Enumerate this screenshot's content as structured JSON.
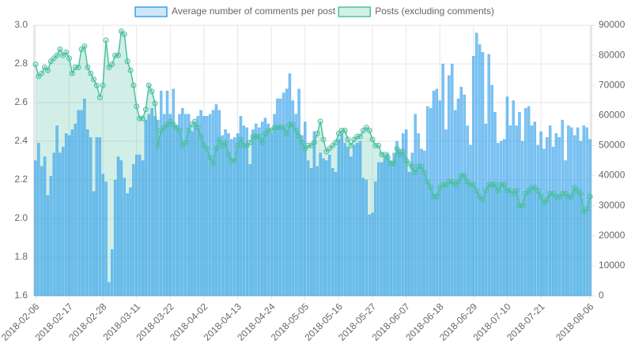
{
  "chart_data": {
    "type": "bar",
    "categories": [
      "2018-02-06",
      null,
      null,
      null,
      null,
      null,
      null,
      null,
      null,
      null,
      null,
      "2018-02-17",
      null,
      null,
      null,
      null,
      null,
      null,
      null,
      null,
      null,
      null,
      "2018-02-28",
      null,
      null,
      null,
      null,
      null,
      null,
      null,
      null,
      null,
      null,
      "2018-03-11",
      null,
      null,
      null,
      null,
      null,
      null,
      null,
      null,
      null,
      null,
      "2018-03-22",
      null,
      null,
      null,
      null,
      null,
      null,
      null,
      null,
      null,
      null,
      "2018-04-02",
      null,
      null,
      null,
      null,
      null,
      null,
      null,
      null,
      null,
      null,
      "2018-04-13",
      null,
      null,
      null,
      null,
      null,
      null,
      null,
      null,
      null,
      null,
      "2018-04-24",
      null,
      null,
      null,
      null,
      null,
      null,
      null,
      null,
      null,
      null,
      "2018-05-05",
      null,
      null,
      null,
      null,
      null,
      null,
      null,
      null,
      null,
      null,
      "2018-05-16",
      null,
      null,
      null,
      null,
      null,
      null,
      null,
      null,
      null,
      null,
      "2018-05-27",
      null,
      null,
      null,
      null,
      null,
      null,
      null,
      null,
      null,
      null,
      "2018-06-07",
      null,
      null,
      null,
      null,
      null,
      null,
      null,
      null,
      null,
      null,
      "2018-06-18",
      null,
      null,
      null,
      null,
      null,
      null,
      null,
      null,
      null,
      null,
      "2018-06-29",
      null,
      null,
      null,
      null,
      null,
      null,
      null,
      null,
      null,
      null,
      "2018-07-10",
      null,
      null,
      null,
      null,
      null,
      null,
      null,
      null,
      null,
      null,
      "2018-07-21",
      null,
      null,
      null,
      null,
      null,
      null,
      null,
      null,
      null,
      null,
      null,
      null,
      null,
      null,
      null,
      "2018-08-06"
    ],
    "series": [
      {
        "name": "Average number of comments per post",
        "color": "#36a2eb",
        "axis": "y",
        "values": [
          2.3,
          2.39,
          2.27,
          2.32,
          2.12,
          2.22,
          2.34,
          2.48,
          2.34,
          2.37,
          2.44,
          2.43,
          2.46,
          2.49,
          2.56,
          2.56,
          2.62,
          2.46,
          2.42,
          2.14,
          2.42,
          2.42,
          2.23,
          2.19,
          1.67,
          1.84,
          2.2,
          2.32,
          2.3,
          2.21,
          2.13,
          2.16,
          2.28,
          2.33,
          2.33,
          2.3,
          2.51,
          2.54,
          2.57,
          2.53,
          2.51,
          2.66,
          2.54,
          2.66,
          2.54,
          2.67,
          2.48,
          2.54,
          2.57,
          2.54,
          2.54,
          2.45,
          2.49,
          2.53,
          2.56,
          2.53,
          2.53,
          2.54,
          2.56,
          2.59,
          2.56,
          2.43,
          2.46,
          2.44,
          2.41,
          2.42,
          2.44,
          2.53,
          2.48,
          2.47,
          2.28,
          2.46,
          2.49,
          2.47,
          2.5,
          2.52,
          2.49,
          2.44,
          2.54,
          2.62,
          2.62,
          2.65,
          2.67,
          2.75,
          2.61,
          2.54,
          2.67,
          2.43,
          2.5,
          2.3,
          2.26,
          2.45,
          2.27,
          2.34,
          2.31,
          2.3,
          2.33,
          2.26,
          2.24,
          2.41,
          2.44,
          2.39,
          2.37,
          2.32,
          2.38,
          2.39,
          2.4,
          2.21,
          2.2,
          2.02,
          2.03,
          2.19,
          2.29,
          2.29,
          2.32,
          2.34,
          2.3,
          2.34,
          2.4,
          2.36,
          2.44,
          2.46,
          2.24,
          2.34,
          2.54,
          2.44,
          2.36,
          2.35,
          2.58,
          2.57,
          2.66,
          2.67,
          2.61,
          2.8,
          2.46,
          2.74,
          2.8,
          2.56,
          2.62,
          2.68,
          2.64,
          2.48,
          2.38,
          2.84,
          2.96,
          2.9,
          2.86,
          2.49,
          2.85,
          2.69,
          2.55,
          2.39,
          2.4,
          2.41,
          2.63,
          2.48,
          2.61,
          2.48,
          2.55,
          2.4,
          2.57,
          2.58,
          2.48,
          2.5,
          2.38,
          2.45,
          2.36,
          2.42,
          2.48,
          2.37,
          2.44,
          2.42,
          2.51,
          2.3,
          2.48,
          2.47,
          2.43,
          2.47,
          2.4,
          2.48,
          2.47,
          2.41
        ]
      },
      {
        "name": "Posts (excluding comments)",
        "color": "#4bc0a0",
        "type": "line",
        "axis": "y2",
        "values": [
          77000,
          73000,
          74000,
          76000,
          75000,
          78000,
          79000,
          80000,
          82000,
          80000,
          81000,
          79000,
          74000,
          76000,
          76000,
          82000,
          83000,
          76000,
          74000,
          72000,
          70000,
          66000,
          70000,
          85000,
          76000,
          77000,
          80000,
          80000,
          88000,
          87000,
          78000,
          75000,
          70000,
          63000,
          59000,
          59000,
          62000,
          70000,
          68000,
          64000,
          50000,
          55000,
          56000,
          57000,
          58000,
          57000,
          56000,
          55000,
          50000,
          51000,
          55000,
          57000,
          58000,
          56000,
          53000,
          50000,
          49000,
          46000,
          44000,
          49000,
          52000,
          50000,
          51000,
          47000,
          45000,
          45000,
          50000,
          52000,
          50000,
          50000,
          51000,
          53000,
          53000,
          53000,
          51000,
          54000,
          55000,
          55000,
          56000,
          56000,
          56000,
          56000,
          54000,
          57000,
          57000,
          55000,
          53000,
          51000,
          49000,
          50000,
          50000,
          51000,
          54000,
          58000,
          52000,
          48000,
          49000,
          50000,
          51000,
          54000,
          55000,
          55000,
          52000,
          50000,
          52000,
          53000,
          53000,
          55000,
          56000,
          55000,
          52000,
          50000,
          50000,
          47000,
          47000,
          46000,
          44000,
          44000,
          49000,
          47000,
          48000,
          45000,
          44000,
          43000,
          41000,
          43000,
          43000,
          41000,
          38000,
          36000,
          33000,
          33000,
          36000,
          37000,
          37000,
          38000,
          38000,
          37000,
          38000,
          40000,
          40000,
          38000,
          37000,
          37000,
          35000,
          33000,
          32000,
          35000,
          37000,
          37000,
          37000,
          35000,
          37000,
          37000,
          35000,
          35000,
          34000,
          35000,
          30000,
          30000,
          34000,
          35000,
          36000,
          36000,
          35000,
          33000,
          31000,
          32000,
          34000,
          34000,
          33000,
          33000,
          34000,
          34000,
          33000,
          33000,
          36000,
          35000,
          34000,
          28000,
          29000,
          33000
        ]
      }
    ],
    "ylim": [
      1.6,
      3.0
    ],
    "yticks": [
      1.6,
      1.8,
      {
        "value": 2,
        "label": "2.0"
      },
      2.2,
      2.4,
      2.6,
      2.8,
      {
        "value": 3,
        "label": "3.0"
      }
    ],
    "y2lim": [
      0,
      90000
    ],
    "y2ticks": [
      0,
      10000,
      20000,
      30000,
      40000,
      50000,
      60000,
      70000,
      80000,
      90000
    ],
    "grid": true,
    "legend": "top"
  }
}
